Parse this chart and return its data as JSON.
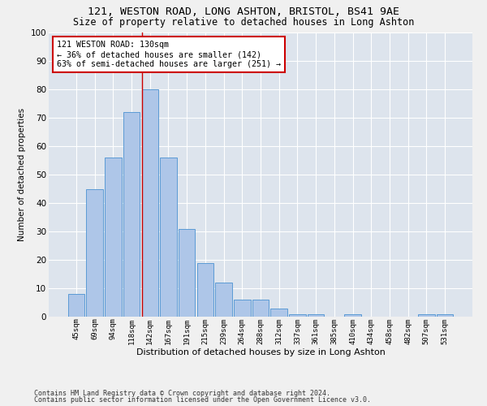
{
  "title": "121, WESTON ROAD, LONG ASHTON, BRISTOL, BS41 9AE",
  "subtitle": "Size of property relative to detached houses in Long Ashton",
  "xlabel": "Distribution of detached houses by size in Long Ashton",
  "ylabel": "Number of detached properties",
  "categories": [
    "45sqm",
    "69sqm",
    "94sqm",
    "118sqm",
    "142sqm",
    "167sqm",
    "191sqm",
    "215sqm",
    "239sqm",
    "264sqm",
    "288sqm",
    "312sqm",
    "337sqm",
    "361sqm",
    "385sqm",
    "410sqm",
    "434sqm",
    "458sqm",
    "482sqm",
    "507sqm",
    "531sqm"
  ],
  "values": [
    8,
    45,
    56,
    72,
    80,
    56,
    31,
    19,
    12,
    6,
    6,
    3,
    1,
    1,
    0,
    1,
    0,
    0,
    0,
    1,
    1
  ],
  "bar_color": "#aec6e8",
  "bar_edge_color": "#5b9bd5",
  "background_color": "#dde4ed",
  "grid_color": "#ffffff",
  "fig_bg_color": "#f0f0f0",
  "annotation_box_text": "121 WESTON ROAD: 130sqm\n← 36% of detached houses are smaller (142)\n63% of semi-detached houses are larger (251) →",
  "annotation_box_color": "#ffffff",
  "annotation_box_edge_color": "#cc0000",
  "vline_color": "#cc0000",
  "ylim": [
    0,
    100
  ],
  "yticks": [
    0,
    10,
    20,
    30,
    40,
    50,
    60,
    70,
    80,
    90,
    100
  ],
  "footer1": "Contains HM Land Registry data © Crown copyright and database right 2024.",
  "footer2": "Contains public sector information licensed under the Open Government Licence v3.0."
}
